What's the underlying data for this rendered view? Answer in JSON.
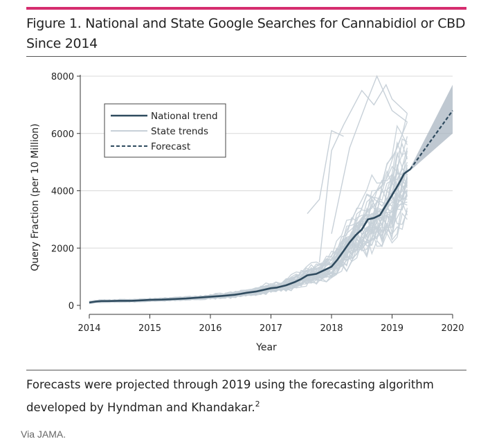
{
  "figure": {
    "title": "Figure 1. National and State Google Searches for Cannabidiol or CBD Since 2014",
    "caption": "Forecasts were projected through 2019 using the forecasting algorithm developed by Hyndman and Khandakar.",
    "caption_sup": "2",
    "accent_color": "#d62d6f"
  },
  "source": "Via JAMA.",
  "chart_data": {
    "type": "line",
    "title": "Figure 1. National and State Google Searches for Cannabidiol or CBD Since 2014",
    "xlabel": "Year",
    "ylabel": "Query Fraction (per 10 Million)",
    "xlim": [
      2014,
      2020
    ],
    "ylim": [
      0,
      8000
    ],
    "xticks": [
      2014,
      2015,
      2016,
      2017,
      2018,
      2019,
      2020
    ],
    "yticks": [
      0,
      2000,
      4000,
      6000,
      8000
    ],
    "grid": "horizontal",
    "legend_position": "top-left",
    "colors": {
      "national": "#2e4a5e",
      "state": "#c7d0d8",
      "forecast": "#2e4a5e",
      "band": "#a9b6c1"
    },
    "series": [
      {
        "name": "National trend",
        "style": "solid",
        "points": [
          [
            2014.0,
            100
          ],
          [
            2014.1,
            130
          ],
          [
            2014.2,
            150
          ],
          [
            2014.3,
            150
          ],
          [
            2014.5,
            160
          ],
          [
            2014.7,
            160
          ],
          [
            2014.9,
            180
          ],
          [
            2015.0,
            190
          ],
          [
            2015.2,
            200
          ],
          [
            2015.4,
            220
          ],
          [
            2015.6,
            240
          ],
          [
            2015.8,
            270
          ],
          [
            2016.0,
            300
          ],
          [
            2016.2,
            330
          ],
          [
            2016.4,
            370
          ],
          [
            2016.5,
            400
          ],
          [
            2016.6,
            440
          ],
          [
            2016.75,
            480
          ],
          [
            2016.9,
            550
          ],
          [
            2017.0,
            600
          ],
          [
            2017.1,
            620
          ],
          [
            2017.25,
            700
          ],
          [
            2017.4,
            820
          ],
          [
            2017.5,
            920
          ],
          [
            2017.6,
            1050
          ],
          [
            2017.75,
            1100
          ],
          [
            2017.9,
            1250
          ],
          [
            2018.0,
            1350
          ],
          [
            2018.1,
            1600
          ],
          [
            2018.2,
            1900
          ],
          [
            2018.3,
            2200
          ],
          [
            2018.4,
            2450
          ],
          [
            2018.5,
            2650
          ],
          [
            2018.6,
            3000
          ],
          [
            2018.7,
            3050
          ],
          [
            2018.8,
            3150
          ],
          [
            2018.9,
            3500
          ],
          [
            2019.0,
            3850
          ],
          [
            2019.1,
            4200
          ],
          [
            2019.2,
            4600
          ],
          [
            2019.3,
            4750
          ]
        ]
      },
      {
        "name": "Forecast",
        "style": "dashed",
        "points": [
          [
            2019.3,
            4750
          ],
          [
            2020.0,
            6800
          ]
        ],
        "band_upper": [
          [
            2019.3,
            4800
          ],
          [
            2020.0,
            7700
          ]
        ],
        "band_lower": [
          [
            2019.3,
            4700
          ],
          [
            2020.0,
            6000
          ]
        ]
      },
      {
        "name": "State trends",
        "style": "solid",
        "count": 40,
        "x_end": 2019.25,
        "final_values": [
          6700,
          6400,
          5900,
          5700,
          5600,
          5500,
          5400,
          5300,
          5200,
          5100,
          5000,
          4900,
          4800,
          4750,
          4700,
          4650,
          4600,
          4550,
          4500,
          4450,
          4400,
          4350,
          4300,
          4250,
          4200,
          4150,
          4100,
          4050,
          4000,
          3950,
          3900,
          3850,
          3800,
          3700,
          3600,
          3500,
          3400,
          3300,
          3150,
          3000
        ],
        "spikes": [
          {
            "x": [
              2017.8,
              2018.0,
              2018.2,
              2018.5,
              2018.7,
              2018.9,
              2019.0,
              2019.25
            ],
            "y": [
              1500,
              5400,
              6300,
              7500,
              7000,
              7700,
              7200,
              6700
            ]
          },
          {
            "x": [
              2018.0,
              2018.3,
              2018.6,
              2018.75,
              2019.0,
              2019.25
            ],
            "y": [
              2500,
              5500,
              7200,
              8000,
              6800,
              6400
            ]
          },
          {
            "x": [
              2017.6,
              2017.8,
              2018.0,
              2018.2
            ],
            "y": [
              3200,
              3700,
              6100,
              5900
            ]
          }
        ]
      }
    ]
  },
  "legend": {
    "national": "National trend",
    "state": "State trends",
    "forecast": "Forecast"
  },
  "axis": {
    "xlabel": "Year",
    "ylabel": "Query Fraction (per 10 Million)",
    "xticks": [
      "2014",
      "2015",
      "2016",
      "2017",
      "2018",
      "2019",
      "2020"
    ],
    "yticks": [
      "0",
      "2000",
      "4000",
      "6000",
      "8000"
    ]
  }
}
